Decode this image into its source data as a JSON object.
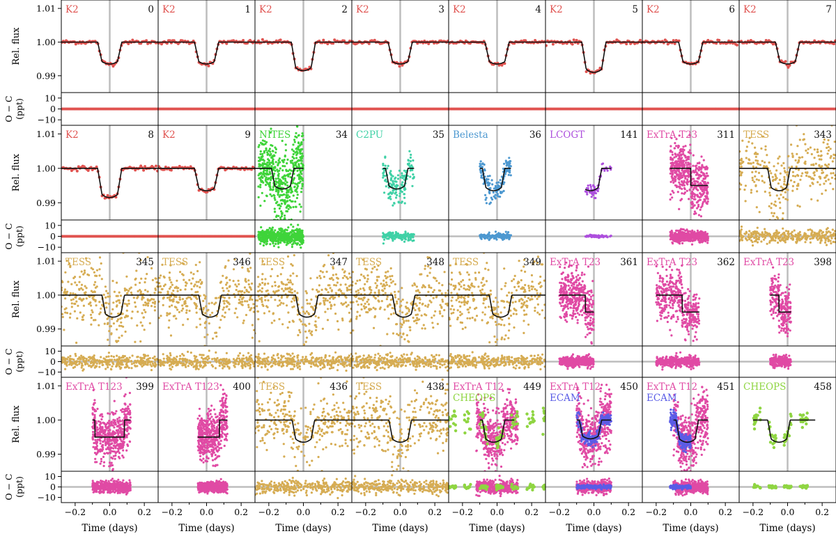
{
  "chart_data": {
    "type": "scatter",
    "description_layout": "4 rows x 8 columns of light-curve panels, each with Rel. flux (top) and O - C residuals (bottom)",
    "xlabel": "Time (days)",
    "ylabel_flux": "Rel. flux",
    "ylabel_resid": [
      "O − C",
      "(ppt)"
    ],
    "xlim": [
      -0.28,
      0.28
    ],
    "x_ticks": [
      -0.2,
      0.0,
      0.2
    ],
    "x_tick_labels": [
      "−0.2",
      "0.0",
      "0.2"
    ],
    "flux_ylim": [
      0.985,
      1.0125
    ],
    "flux_ticks": [
      0.99,
      1.0,
      1.01
    ],
    "flux_tick_labels": [
      "0.99",
      "1.00",
      "1.01"
    ],
    "resid_ylim": [
      -15,
      15
    ],
    "resid_ticks": [
      -10,
      0,
      10
    ],
    "resid_tick_labels": [
      "−10",
      "0",
      "10"
    ],
    "instrument_colors": {
      "K2": "#e0524f",
      "TESS": "#d6ac53",
      "NITES": "#3fd43a",
      "C2PU": "#3fd1a6",
      "Belesta": "#4d98d0",
      "LCOGT": "#ad4fdd",
      "ExTrA": "#e04aa4",
      "CHEOPS": "#8fd542",
      "ECAM": "#5a5ce6"
    },
    "panels": [
      {
        "epoch": "0",
        "labels": [
          {
            "text": "K2",
            "inst": "K2"
          }
        ],
        "model": "K2",
        "range": [
          -0.28,
          0.28
        ],
        "center": 0.0,
        "depth": 0.0065,
        "noise": 0.0003,
        "resid_noise": 0.6,
        "ndata": 70,
        "series": [
          {
            "inst": "K2",
            "range": [
              -0.28,
              0.28
            ],
            "n": 70,
            "noise": 0.0003
          }
        ]
      },
      {
        "epoch": "1",
        "labels": [
          {
            "text": "K2",
            "inst": "K2"
          }
        ],
        "model": "K2",
        "range": [
          -0.28,
          0.28
        ],
        "center": 0.0,
        "depth": 0.0065,
        "series": [
          {
            "inst": "K2",
            "range": [
              -0.28,
              0.28
            ],
            "n": 70,
            "noise": 0.0003
          }
        ]
      },
      {
        "epoch": "2",
        "labels": [
          {
            "text": "K2",
            "inst": "K2"
          }
        ],
        "model": "K2",
        "range": [
          -0.28,
          0.28
        ],
        "center": 0.0,
        "depth": 0.0085,
        "series": [
          {
            "inst": "K2",
            "range": [
              -0.28,
              0.28
            ],
            "n": 70,
            "noise": 0.0003
          }
        ]
      },
      {
        "epoch": "3",
        "labels": [
          {
            "text": "K2",
            "inst": "K2"
          }
        ],
        "model": "K2",
        "range": [
          -0.28,
          0.28
        ],
        "center": 0.0,
        "depth": 0.0065,
        "series": [
          {
            "inst": "K2",
            "range": [
              -0.28,
              0.28
            ],
            "n": 70,
            "noise": 0.0003
          }
        ]
      },
      {
        "epoch": "4",
        "labels": [
          {
            "text": "K2",
            "inst": "K2"
          }
        ],
        "model": "K2",
        "range": [
          -0.28,
          0.28
        ],
        "center": 0.0,
        "depth": 0.0065,
        "series": [
          {
            "inst": "K2",
            "range": [
              -0.28,
              0.28
            ],
            "n": 70,
            "noise": 0.0003
          }
        ]
      },
      {
        "epoch": "5",
        "labels": [
          {
            "text": "K2",
            "inst": "K2"
          }
        ],
        "model": "K2",
        "range": [
          -0.28,
          0.28
        ],
        "center": 0.0,
        "depth": 0.009,
        "series": [
          {
            "inst": "K2",
            "range": [
              -0.28,
              0.28
            ],
            "n": 70,
            "noise": 0.0003
          }
        ]
      },
      {
        "epoch": "6",
        "labels": [
          {
            "text": "K2",
            "inst": "K2"
          }
        ],
        "model": "K2",
        "range": [
          -0.28,
          0.28
        ],
        "center": 0.0,
        "depth": 0.0065,
        "series": [
          {
            "inst": "K2",
            "range": [
              -0.28,
              0.28
            ],
            "n": 70,
            "noise": 0.0003
          }
        ]
      },
      {
        "epoch": "7",
        "labels": [
          {
            "text": "K2",
            "inst": "K2"
          }
        ],
        "model": "K2",
        "range": [
          -0.28,
          0.28
        ],
        "center": 0.0,
        "depth": 0.0065,
        "series": [
          {
            "inst": "K2",
            "range": [
              -0.28,
              0.28
            ],
            "n": 70,
            "noise": 0.0003
          }
        ]
      },
      {
        "epoch": "8",
        "labels": [
          {
            "text": "K2",
            "inst": "K2"
          }
        ],
        "model": "K2",
        "range": [
          -0.28,
          0.28
        ],
        "center": 0.0,
        "depth": 0.0085,
        "series": [
          {
            "inst": "K2",
            "range": [
              -0.28,
              0.28
            ],
            "n": 70,
            "noise": 0.0003
          }
        ]
      },
      {
        "epoch": "9",
        "labels": [
          {
            "text": "K2",
            "inst": "K2"
          }
        ],
        "model": "K2",
        "range": [
          -0.28,
          0.28
        ],
        "center": 0.0,
        "depth": 0.0065,
        "series": [
          {
            "inst": "K2",
            "range": [
              -0.28,
              0.28
            ],
            "n": 70,
            "noise": 0.0003
          }
        ]
      },
      {
        "epoch": "34",
        "labels": [
          {
            "text": "NITES",
            "inst": "NITES"
          }
        ],
        "model": "TESS",
        "range": [
          -0.28,
          0.0
        ],
        "center": -0.12,
        "depth": 0.006,
        "series": [
          {
            "inst": "NITES",
            "range": [
              -0.26,
              0.0
            ],
            "n": 500,
            "noise": 0.005
          }
        ]
      },
      {
        "epoch": "35",
        "labels": [
          {
            "text": "C2PU",
            "inst": "C2PU"
          }
        ],
        "model": "U",
        "range": [
          -0.1,
          0.08
        ],
        "center": -0.02,
        "depth": 0.006,
        "series": [
          {
            "inst": "C2PU",
            "range": [
              -0.1,
              0.08
            ],
            "n": 150,
            "noise": 0.0025
          }
        ]
      },
      {
        "epoch": "36",
        "labels": [
          {
            "text": "Belesta",
            "inst": "Belesta"
          }
        ],
        "model": "U",
        "range": [
          -0.1,
          0.08
        ],
        "center": -0.02,
        "depth": 0.0065,
        "series": [
          {
            "inst": "Belesta",
            "range": [
              -0.1,
              0.08
            ],
            "n": 150,
            "noise": 0.0018
          }
        ]
      },
      {
        "epoch": "141",
        "labels": [
          {
            "text": "LCOGT",
            "inst": "LCOGT"
          }
        ],
        "model": "U",
        "range": [
          -0.05,
          0.1
        ],
        "center": -0.02,
        "depth": 0.0065,
        "series": [
          {
            "inst": "LCOGT",
            "range": [
              -0.05,
              0.1
            ],
            "n": 60,
            "noise": 0.0008
          }
        ]
      },
      {
        "epoch": "311",
        "labels": [
          {
            "text": "ExTrA T23",
            "inst": "ExTrA"
          }
        ],
        "model": "Step",
        "range": [
          -0.12,
          0.1
        ],
        "center": 0.0,
        "depth": 0.005,
        "series": [
          {
            "inst": "ExTrA",
            "range": [
              -0.12,
              0.1
            ],
            "n": 500,
            "noise": 0.0035
          }
        ]
      },
      {
        "epoch": "343",
        "labels": [
          {
            "text": "TESS",
            "inst": "TESS"
          }
        ],
        "model": "TESS",
        "range": [
          -0.28,
          0.28
        ],
        "center": -0.05,
        "depth": 0.0065,
        "series": [
          {
            "inst": "TESS",
            "range": [
              -0.28,
              0.28
            ],
            "n": 300,
            "noise": 0.0045
          }
        ]
      },
      {
        "epoch": "345",
        "labels": [
          {
            "text": "TESS",
            "inst": "TESS"
          }
        ],
        "model": "TESS",
        "range": [
          -0.28,
          0.28
        ],
        "center": 0.02,
        "depth": 0.0065,
        "series": [
          {
            "inst": "TESS",
            "range": [
              -0.28,
              0.28
            ],
            "n": 300,
            "noise": 0.0045
          }
        ]
      },
      {
        "epoch": "346",
        "labels": [
          {
            "text": "TESS",
            "inst": "TESS"
          }
        ],
        "model": "TESS",
        "range": [
          -0.28,
          0.28
        ],
        "center": 0.02,
        "depth": 0.0065,
        "series": [
          {
            "inst": "TESS",
            "range": [
              -0.28,
              0.28
            ],
            "n": 300,
            "noise": 0.0045
          }
        ]
      },
      {
        "epoch": "347",
        "labels": [
          {
            "text": "TESS",
            "inst": "TESS"
          }
        ],
        "model": "TESS",
        "range": [
          -0.28,
          0.28
        ],
        "center": 0.02,
        "depth": 0.0065,
        "series": [
          {
            "inst": "TESS",
            "range": [
              -0.28,
              0.28
            ],
            "n": 300,
            "noise": 0.0045
          }
        ]
      },
      {
        "epoch": "348",
        "labels": [
          {
            "text": "TESS",
            "inst": "TESS"
          }
        ],
        "model": "TESS",
        "range": [
          -0.28,
          0.28
        ],
        "center": 0.02,
        "depth": 0.0065,
        "series": [
          {
            "inst": "TESS",
            "range": [
              -0.28,
              0.28
            ],
            "n": 300,
            "noise": 0.0045
          }
        ]
      },
      {
        "epoch": "349",
        "labels": [
          {
            "text": "TESS",
            "inst": "TESS"
          }
        ],
        "model": "TESS",
        "range": [
          -0.28,
          0.28
        ],
        "center": 0.02,
        "depth": 0.0065,
        "series": [
          {
            "inst": "TESS",
            "range": [
              -0.28,
              0.28
            ],
            "n": 300,
            "noise": 0.0045
          }
        ]
      },
      {
        "epoch": "361",
        "labels": [
          {
            "text": "ExTrA T23",
            "inst": "ExTrA"
          }
        ],
        "model": "StepEnd",
        "range": [
          -0.2,
          0.0
        ],
        "center": -0.05,
        "depth": 0.005,
        "series": [
          {
            "inst": "ExTrA",
            "range": [
              -0.2,
              0.0
            ],
            "n": 400,
            "noise": 0.0035
          }
        ]
      },
      {
        "epoch": "362",
        "labels": [
          {
            "text": "ExTrA T23",
            "inst": "ExTrA"
          }
        ],
        "model": "Step",
        "range": [
          -0.2,
          0.05
        ],
        "center": -0.05,
        "depth": 0.005,
        "series": [
          {
            "inst": "ExTrA",
            "range": [
              -0.2,
              0.05
            ],
            "n": 400,
            "noise": 0.0035
          }
        ]
      },
      {
        "epoch": "398",
        "labels": [
          {
            "text": "ExTrA T23",
            "inst": "ExTrA"
          }
        ],
        "model": "StepEnd",
        "range": [
          -0.1,
          0.02
        ],
        "center": -0.05,
        "depth": 0.005,
        "series": [
          {
            "inst": "ExTrA",
            "range": [
              -0.1,
              0.02
            ],
            "n": 250,
            "noise": 0.0035
          }
        ]
      },
      {
        "epoch": "399",
        "labels": [
          {
            "text": "ExTrA T123",
            "inst": "ExTrA"
          }
        ],
        "model": "Box",
        "range": [
          -0.1,
          0.12
        ],
        "center": 0.0,
        "depth": 0.005,
        "series": [
          {
            "inst": "ExTrA",
            "range": [
              -0.1,
              0.12
            ],
            "n": 500,
            "noise": 0.0035
          }
        ]
      },
      {
        "epoch": "400",
        "labels": [
          {
            "text": "ExTrA T123",
            "inst": "ExTrA"
          }
        ],
        "model": "StepUp",
        "range": [
          -0.05,
          0.12
        ],
        "center": 0.0,
        "depth": 0.005,
        "series": [
          {
            "inst": "ExTrA",
            "range": [
              -0.05,
              0.12
            ],
            "n": 500,
            "noise": 0.0035
          }
        ]
      },
      {
        "epoch": "436",
        "labels": [
          {
            "text": "TESS",
            "inst": "TESS"
          }
        ],
        "model": "TESS",
        "range": [
          -0.28,
          0.28
        ],
        "center": 0.0,
        "depth": 0.0065,
        "series": [
          {
            "inst": "TESS",
            "range": [
              -0.28,
              0.28
            ],
            "n": 300,
            "noise": 0.0045
          }
        ]
      },
      {
        "epoch": "438",
        "labels": [
          {
            "text": "TESS",
            "inst": "TESS"
          }
        ],
        "model": "TESS",
        "range": [
          -0.28,
          0.28
        ],
        "center": 0.0,
        "depth": 0.0065,
        "series": [
          {
            "inst": "TESS",
            "range": [
              -0.28,
              0.28
            ],
            "n": 300,
            "noise": 0.0045
          }
        ]
      },
      {
        "epoch": "449",
        "labels": [
          {
            "text": "ExTrA T12",
            "inst": "ExTrA"
          },
          {
            "text": "CHEOPS",
            "inst": "CHEOPS"
          }
        ],
        "model": "U",
        "range": [
          -0.1,
          0.1
        ],
        "center": -0.02,
        "depth": 0.0065,
        "series": [
          {
            "inst": "ExTrA",
            "range": [
              -0.12,
              0.12
            ],
            "n": 450,
            "noise": 0.004
          },
          {
            "inst": "CHEOPS",
            "range": [
              -0.28,
              0.28
            ],
            "n": 180,
            "noise": 0.0015,
            "gapped": true
          }
        ]
      },
      {
        "epoch": "450",
        "labels": [
          {
            "text": "ExTrA T12",
            "inst": "ExTrA"
          },
          {
            "text": "ECAM",
            "inst": "ECAM"
          }
        ],
        "model": "U",
        "range": [
          -0.1,
          0.1
        ],
        "center": -0.02,
        "depth": 0.0055,
        "series": [
          {
            "inst": "ExTrA",
            "range": [
              -0.1,
              0.1
            ],
            "n": 450,
            "noise": 0.004
          },
          {
            "inst": "ECAM",
            "range": [
              -0.1,
              0.1
            ],
            "n": 200,
            "noise": 0.0012
          }
        ]
      },
      {
        "epoch": "451",
        "labels": [
          {
            "text": "ExTrA T12",
            "inst": "ExTrA"
          },
          {
            "text": "ECAM",
            "inst": "ECAM"
          }
        ],
        "model": "U",
        "range": [
          -0.1,
          0.1
        ],
        "center": -0.02,
        "depth": 0.0065,
        "series": [
          {
            "inst": "ExTrA",
            "range": [
              -0.1,
              0.1
            ],
            "n": 450,
            "noise": 0.004
          },
          {
            "inst": "ECAM",
            "range": [
              -0.12,
              0.0
            ],
            "n": 200,
            "noise": 0.0012
          }
        ]
      },
      {
        "epoch": "458",
        "labels": [
          {
            "text": "CHEOPS",
            "inst": "CHEOPS"
          }
        ],
        "model": "TESS",
        "range": [
          -0.2,
          0.16
        ],
        "center": -0.05,
        "depth": 0.0065,
        "series": [
          {
            "inst": "CHEOPS",
            "range": [
              -0.2,
              0.16
            ],
            "n": 150,
            "noise": 0.0012,
            "gapped": true
          }
        ]
      }
    ]
  }
}
